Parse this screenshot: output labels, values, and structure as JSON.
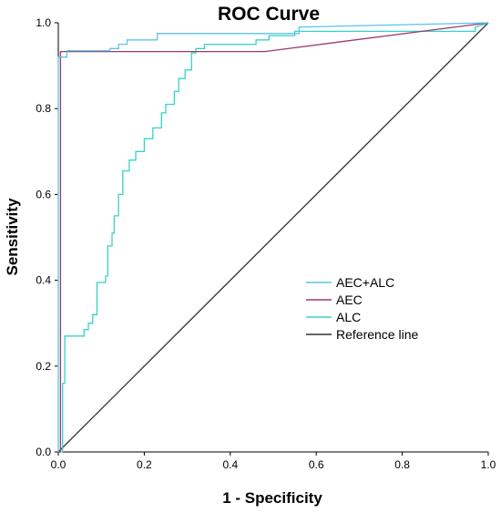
{
  "chart_data": {
    "type": "line",
    "title": "ROC Curve",
    "xlabel": "1 - Specificity",
    "ylabel": "Sensitivity",
    "xlim": [
      0,
      1
    ],
    "ylim": [
      0,
      1
    ],
    "x_ticks": [
      "0.0",
      "0.2",
      "0.4",
      "0.6",
      "0.8",
      "1.0"
    ],
    "y_ticks": [
      "0.0",
      "0.2",
      "0.4",
      "0.6",
      "0.8",
      "1.0"
    ],
    "grid": false,
    "legend_position": "right",
    "series": [
      {
        "name": "AEC+ALC",
        "color": "#5bc4e8",
        "points": [
          [
            0,
            0
          ],
          [
            0,
            0.92
          ],
          [
            0.02,
            0.92
          ],
          [
            0.02,
            0.935
          ],
          [
            0.12,
            0.935
          ],
          [
            0.12,
            0.94
          ],
          [
            0.14,
            0.94
          ],
          [
            0.14,
            0.95
          ],
          [
            0.16,
            0.95
          ],
          [
            0.16,
            0.96
          ],
          [
            0.23,
            0.96
          ],
          [
            0.23,
            0.975
          ],
          [
            0.56,
            0.975
          ],
          [
            0.56,
            0.99
          ],
          [
            1,
            1
          ]
        ]
      },
      {
        "name": "AEC",
        "color": "#9b3a6b",
        "points": [
          [
            0,
            0
          ],
          [
            0.005,
            0
          ],
          [
            0.005,
            0.933
          ],
          [
            0.48,
            0.933
          ],
          [
            1,
            1
          ]
        ]
      },
      {
        "name": "ALC",
        "color": "#37d2c8",
        "points": [
          [
            0,
            0
          ],
          [
            0.01,
            0
          ],
          [
            0.01,
            0.16
          ],
          [
            0.015,
            0.16
          ],
          [
            0.015,
            0.27
          ],
          [
            0.06,
            0.27
          ],
          [
            0.06,
            0.285
          ],
          [
            0.07,
            0.285
          ],
          [
            0.07,
            0.3
          ],
          [
            0.08,
            0.3
          ],
          [
            0.08,
            0.32
          ],
          [
            0.09,
            0.32
          ],
          [
            0.09,
            0.395
          ],
          [
            0.11,
            0.395
          ],
          [
            0.11,
            0.41
          ],
          [
            0.115,
            0.41
          ],
          [
            0.115,
            0.48
          ],
          [
            0.125,
            0.48
          ],
          [
            0.125,
            0.51
          ],
          [
            0.13,
            0.51
          ],
          [
            0.13,
            0.55
          ],
          [
            0.14,
            0.55
          ],
          [
            0.14,
            0.6
          ],
          [
            0.15,
            0.6
          ],
          [
            0.15,
            0.655
          ],
          [
            0.165,
            0.655
          ],
          [
            0.165,
            0.68
          ],
          [
            0.18,
            0.68
          ],
          [
            0.18,
            0.7
          ],
          [
            0.2,
            0.7
          ],
          [
            0.2,
            0.73
          ],
          [
            0.22,
            0.73
          ],
          [
            0.22,
            0.755
          ],
          [
            0.24,
            0.755
          ],
          [
            0.24,
            0.79
          ],
          [
            0.25,
            0.79
          ],
          [
            0.25,
            0.81
          ],
          [
            0.27,
            0.81
          ],
          [
            0.27,
            0.84
          ],
          [
            0.28,
            0.84
          ],
          [
            0.28,
            0.87
          ],
          [
            0.295,
            0.87
          ],
          [
            0.295,
            0.89
          ],
          [
            0.31,
            0.89
          ],
          [
            0.31,
            0.93
          ],
          [
            0.32,
            0.93
          ],
          [
            0.32,
            0.94
          ],
          [
            0.34,
            0.94
          ],
          [
            0.34,
            0.95
          ],
          [
            0.46,
            0.95
          ],
          [
            0.46,
            0.96
          ],
          [
            0.49,
            0.96
          ],
          [
            0.49,
            0.97
          ],
          [
            0.55,
            0.97
          ],
          [
            0.55,
            0.98
          ],
          [
            0.97,
            0.98
          ],
          [
            0.97,
            0.99
          ],
          [
            1,
            1
          ]
        ]
      },
      {
        "name": "Reference line",
        "color": "#333333",
        "points": [
          [
            0,
            0
          ],
          [
            1,
            1
          ]
        ]
      }
    ]
  }
}
